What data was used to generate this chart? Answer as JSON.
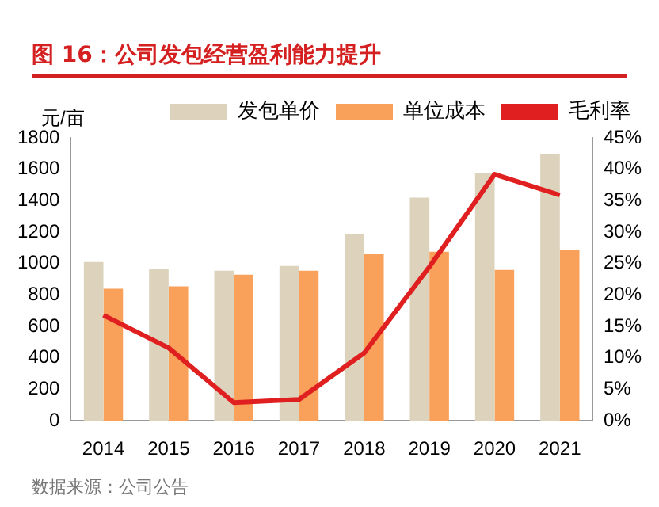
{
  "chart_data": {
    "type": "bar",
    "title": "图 16：公司发包经营盈利能力提升",
    "ylabel": "元/亩",
    "categories": [
      "2014",
      "2015",
      "2016",
      "2017",
      "2018",
      "2019",
      "2020",
      "2021"
    ],
    "series": [
      {
        "name": "发包单价",
        "color": "#ddd3bd",
        "values": [
          1010,
          965,
          955,
          985,
          1190,
          1420,
          1575,
          1695
        ]
      },
      {
        "name": "单位成本",
        "color": "#f9a05a",
        "values": [
          840,
          855,
          930,
          955,
          1060,
          1075,
          960,
          1085
        ]
      },
      {
        "name": "毛利率",
        "type": "line",
        "axis": "y2",
        "color": "#e02020",
        "marker": "none",
        "values": [
          16.8,
          11.6,
          2.9,
          3.4,
          10.8,
          24.5,
          39.2,
          35.9
        ]
      }
    ],
    "ylim": [
      0,
      1800
    ],
    "yticks": [
      0,
      200,
      400,
      600,
      800,
      1000,
      1200,
      1400,
      1600,
      1800
    ],
    "y2lim": [
      0,
      45
    ],
    "y2ticks": [
      {
        "value": 0,
        "label": "0%"
      },
      {
        "value": 5,
        "label": "5%"
      },
      {
        "value": 10,
        "label": "10%"
      },
      {
        "value": 15,
        "label": "15%"
      },
      {
        "value": 20,
        "label": "20%"
      },
      {
        "value": 25,
        "label": "25%"
      },
      {
        "value": 30,
        "label": "30%"
      },
      {
        "value": 35,
        "label": "35%"
      },
      {
        "value": 40,
        "label": "40%"
      },
      {
        "value": 45,
        "label": "45%"
      }
    ],
    "grid": false,
    "legend": "top",
    "annotations": [
      "数据来源：公司公告"
    ]
  }
}
